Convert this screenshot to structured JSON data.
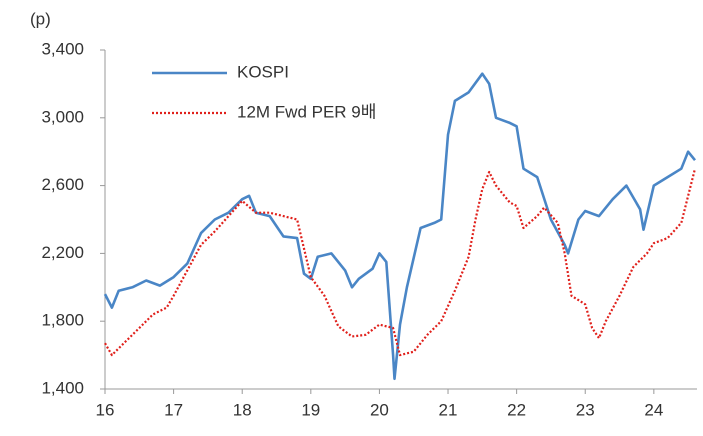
{
  "chart_data": {
    "type": "line",
    "y_unit_label": "(p)",
    "xlim": [
      16,
      24.6
    ],
    "xticks": [
      16,
      17,
      18,
      19,
      20,
      21,
      22,
      23,
      24
    ],
    "ylim": [
      1400,
      3400
    ],
    "yticks": [
      {
        "value": 1400,
        "label": "1,400"
      },
      {
        "value": 1800,
        "label": "1,800"
      },
      {
        "value": 2200,
        "label": "2,200"
      },
      {
        "value": 2600,
        "label": "2,600"
      },
      {
        "value": 3000,
        "label": "3,000"
      },
      {
        "value": 3400,
        "label": "3,400"
      }
    ],
    "grid": false,
    "legend": "top-left",
    "series": [
      {
        "name": "KOSPI",
        "color": "#4a86c6",
        "style": "solid",
        "x": [
          16.0,
          16.1,
          16.2,
          16.4,
          16.6,
          16.8,
          17.0,
          17.2,
          17.4,
          17.6,
          17.8,
          18.0,
          18.1,
          18.2,
          18.4,
          18.6,
          18.8,
          18.9,
          19.0,
          19.1,
          19.3,
          19.5,
          19.6,
          19.7,
          19.9,
          20.0,
          20.1,
          20.2,
          20.22,
          20.3,
          20.4,
          20.6,
          20.8,
          20.9,
          21.0,
          21.1,
          21.3,
          21.5,
          21.6,
          21.7,
          21.9,
          22.0,
          22.1,
          22.3,
          22.5,
          22.7,
          22.75,
          22.9,
          23.0,
          23.2,
          23.4,
          23.6,
          23.8,
          23.85,
          24.0,
          24.2,
          24.4,
          24.5,
          24.6
        ],
        "values": [
          1960,
          1880,
          1980,
          2000,
          2040,
          2010,
          2060,
          2140,
          2320,
          2400,
          2440,
          2520,
          2540,
          2440,
          2420,
          2300,
          2290,
          2080,
          2050,
          2180,
          2200,
          2100,
          2000,
          2050,
          2110,
          2200,
          2150,
          1600,
          1460,
          1780,
          2000,
          2350,
          2380,
          2400,
          2900,
          3100,
          3150,
          3260,
          3200,
          3000,
          2970,
          2950,
          2700,
          2650,
          2400,
          2250,
          2200,
          2400,
          2450,
          2420,
          2520,
          2600,
          2460,
          2340,
          2600,
          2650,
          2700,
          2800,
          2750
        ]
      },
      {
        "name": "12M Fwd PER 9배",
        "color": "#e0201b",
        "style": "dotted",
        "x": [
          16.0,
          16.1,
          16.3,
          16.5,
          16.7,
          16.9,
          17.0,
          17.2,
          17.4,
          17.6,
          17.8,
          18.0,
          18.2,
          18.4,
          18.6,
          18.8,
          19.0,
          19.2,
          19.4,
          19.6,
          19.8,
          20.0,
          20.2,
          20.3,
          20.5,
          20.7,
          20.9,
          21.1,
          21.3,
          21.4,
          21.5,
          21.6,
          21.7,
          21.9,
          22.0,
          22.1,
          22.3,
          22.4,
          22.6,
          22.7,
          22.8,
          23.0,
          23.1,
          23.2,
          23.3,
          23.5,
          23.7,
          23.9,
          24.0,
          24.2,
          24.4,
          24.6
        ],
        "values": [
          1670,
          1600,
          1680,
          1760,
          1840,
          1880,
          1950,
          2100,
          2250,
          2330,
          2420,
          2510,
          2440,
          2440,
          2420,
          2400,
          2060,
          1950,
          1770,
          1710,
          1720,
          1780,
          1760,
          1600,
          1620,
          1720,
          1800,
          1980,
          2180,
          2400,
          2580,
          2680,
          2600,
          2500,
          2480,
          2350,
          2420,
          2470,
          2380,
          2200,
          1950,
          1900,
          1760,
          1700,
          1800,
          1950,
          2120,
          2200,
          2260,
          2290,
          2380,
          2700
        ]
      }
    ]
  }
}
